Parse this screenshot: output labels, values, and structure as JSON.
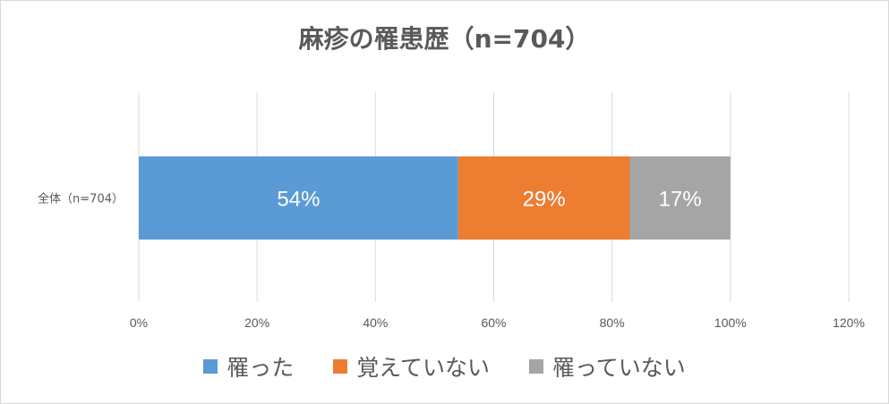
{
  "chart_data": {
    "type": "bar",
    "orientation": "horizontal",
    "stacked": true,
    "title": "麻疹の罹患歴（n=704）",
    "categories": [
      "全体（n=704）"
    ],
    "series": [
      {
        "name": "罹った",
        "values": [
          54
        ],
        "label": "54%",
        "color": "#5b9bd5"
      },
      {
        "name": "覚えていない",
        "values": [
          29
        ],
        "label": "29%",
        "color": "#ed7d31"
      },
      {
        "name": "罹っていない",
        "values": [
          17
        ],
        "label": "17%",
        "color": "#a5a5a5"
      }
    ],
    "xlim": [
      0,
      120
    ],
    "x_ticks": [
      "0%",
      "20%",
      "40%",
      "60%",
      "80%",
      "100%",
      "120%"
    ],
    "grid": true,
    "legend_position": "bottom"
  }
}
